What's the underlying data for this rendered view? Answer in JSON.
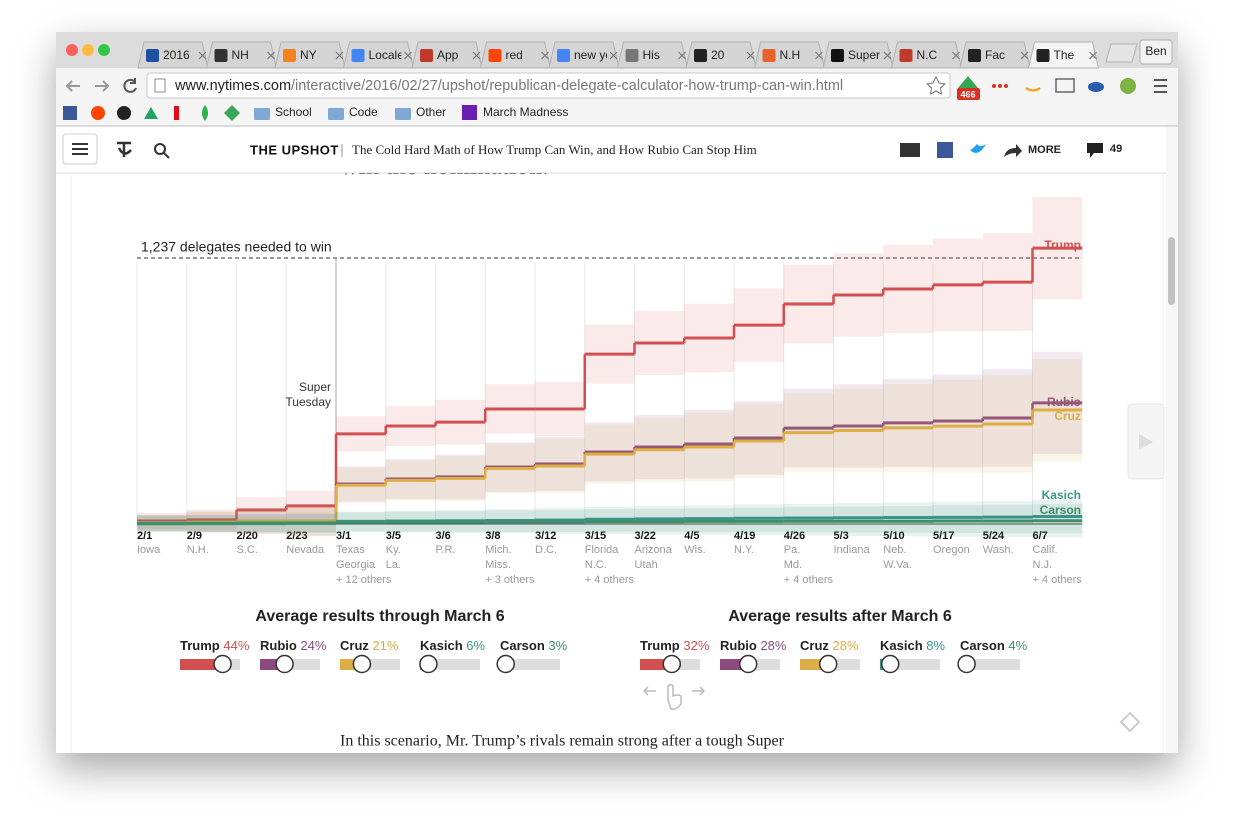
{
  "browser": {
    "tabs": [
      "2016",
      "NH",
      "NY",
      "Locale",
      "App",
      "red",
      "new yo",
      "His",
      "20",
      "N.H",
      "Super",
      "N.C",
      "Fac",
      "The"
    ],
    "user": "Ben",
    "url_domain": "www.nytimes.com",
    "url_path": "/interactive/2016/02/27/upshot/republican-delegate-calculator-how-trump-can-win.html",
    "badge": "466",
    "bookmarks": [
      "School",
      "Code",
      "Other",
      "March Madness"
    ]
  },
  "header": {
    "section": "THE UPSHOT",
    "headline": "The Cold Hard Math of How Trump Can Win, and How Rubio Can Stop Him",
    "more": "MORE",
    "comments": "49"
  },
  "intro_fragment": "win the nomination.",
  "chart": {
    "threshold": {
      "value": 1237,
      "label": "1,237 delegates needed to win"
    },
    "annotation": [
      "Super",
      "Tuesday"
    ],
    "columns": [
      {
        "date": "2/1",
        "places": [
          "Iowa"
        ]
      },
      {
        "date": "2/9",
        "places": [
          "N.H."
        ]
      },
      {
        "date": "2/20",
        "places": [
          "S.C."
        ]
      },
      {
        "date": "2/23",
        "places": [
          "Nevada"
        ]
      },
      {
        "date": "3/1",
        "places": [
          "Texas",
          "Georgia",
          "+ 12 others"
        ]
      },
      {
        "date": "3/5",
        "places": [
          "Ky.",
          "La."
        ]
      },
      {
        "date": "3/6",
        "places": [
          "P.R."
        ]
      },
      {
        "date": "3/8",
        "places": [
          "Mich.",
          "Miss.",
          "+ 3 others"
        ]
      },
      {
        "date": "3/12",
        "places": [
          "D.C."
        ]
      },
      {
        "date": "3/15",
        "places": [
          "Florida",
          "N.C.",
          "+ 4 others"
        ]
      },
      {
        "date": "3/22",
        "places": [
          "Arizona",
          "Utah"
        ]
      },
      {
        "date": "4/5",
        "places": [
          "Wis."
        ]
      },
      {
        "date": "4/19",
        "places": [
          "N.Y."
        ]
      },
      {
        "date": "4/26",
        "places": [
          "Pa.",
          "Md.",
          "+ 4 others"
        ]
      },
      {
        "date": "5/3",
        "places": [
          "Indiana"
        ]
      },
      {
        "date": "5/10",
        "places": [
          "Neb.",
          "W.Va."
        ]
      },
      {
        "date": "5/17",
        "places": [
          "Oregon"
        ]
      },
      {
        "date": "5/24",
        "places": [
          "Wash."
        ]
      },
      {
        "date": "6/7",
        "places": [
          "Calif.",
          "N.J.",
          "+ 4 others"
        ]
      }
    ],
    "series": [
      {
        "name": "Trump",
        "color": "#d24f4f",
        "values": [
          14,
          19,
          65,
          84,
          419,
          456,
          474,
          535,
          535,
          790,
          842,
          865,
          925,
          1023,
          1065,
          1093,
          1112,
          1125,
          1283
        ]
      },
      {
        "name": "Rubio",
        "color": "#8b4a80",
        "values": [
          5,
          9,
          14,
          14,
          186,
          209,
          219,
          265,
          279,
          335,
          358,
          372,
          400,
          446,
          456,
          470,
          479,
          493,
          563
        ]
      },
      {
        "name": "Cruz",
        "color": "#dcae45",
        "values": [
          5,
          9,
          14,
          14,
          180,
          203,
          212,
          258,
          270,
          325,
          345,
          358,
          386,
          425,
          435,
          447,
          455,
          465,
          530
        ]
      },
      {
        "name": "Kasich",
        "color": "#3a958d",
        "values": [
          2,
          3,
          4,
          5,
          12,
          14,
          15,
          16,
          18,
          22,
          24,
          25,
          27,
          28,
          29,
          30,
          31,
          32,
          35
        ]
      },
      {
        "name": "Carson",
        "color": "#3d8f6b",
        "values": [
          1,
          2,
          2,
          3,
          8,
          9,
          9,
          10,
          10,
          11,
          11,
          12,
          12,
          13,
          13,
          13,
          14,
          14,
          15
        ]
      }
    ]
  },
  "scenarios": [
    {
      "title": "Average results through March 6",
      "results": [
        {
          "name": "Trump",
          "share": {
            "value": 44,
            "label": "44%"
          }
        },
        {
          "name": "Rubio",
          "share": {
            "value": 24,
            "label": "24%"
          }
        },
        {
          "name": "Cruz",
          "share": {
            "value": 21,
            "label": "21%"
          }
        },
        {
          "name": "Kasich",
          "share": {
            "value": 6,
            "label": "6%"
          }
        },
        {
          "name": "Carson",
          "share": {
            "value": 3,
            "label": "3%"
          }
        }
      ]
    },
    {
      "title": "Average results after March 6",
      "results": [
        {
          "name": "Trump",
          "share": {
            "value": 32,
            "label": "32%"
          }
        },
        {
          "name": "Rubio",
          "share": {
            "value": 28,
            "label": "28%"
          }
        },
        {
          "name": "Cruz",
          "share": {
            "value": 28,
            "label": "28%"
          }
        },
        {
          "name": "Kasich",
          "share": {
            "value": 8,
            "label": "8%"
          }
        },
        {
          "name": "Carson",
          "share": {
            "value": 4,
            "label": "4%"
          }
        }
      ]
    }
  ],
  "paragraph": "In this scenario, Mr. Trump’s rivals remain strong after a tough Super"
}
